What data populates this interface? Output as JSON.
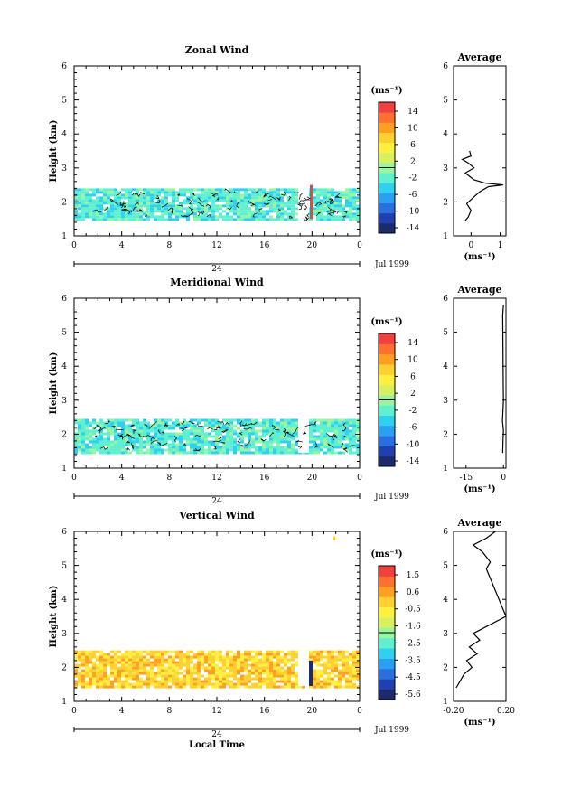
{
  "panels": [
    {
      "id": "zonal",
      "title": "Zonal Wind",
      "ylabel": "Height (km)",
      "xticks": [
        "0",
        "4",
        "8",
        "12",
        "16",
        "20",
        "0"
      ],
      "day_label": "24",
      "date_label": "Jul 1999",
      "colorbar_title": "(ms⁻¹)",
      "colorbar_ticks": [
        "14",
        "10",
        "6",
        "2",
        "-2",
        "-6",
        "-10",
        "-14"
      ],
      "avg_title": "Average",
      "avg_xticks": [
        "0",
        "1"
      ],
      "avg_xlabel": "(ms⁻¹)",
      "yticks": [
        "1",
        "2",
        "3",
        "4",
        "5",
        "6"
      ]
    },
    {
      "id": "meridional",
      "title": "Meridional Wind",
      "ylabel": "Height (km)",
      "xticks": [
        "0",
        "4",
        "8",
        "12",
        "16",
        "20",
        "0"
      ],
      "day_label": "24",
      "date_label": "Jul 1999",
      "colorbar_title": "(ms⁻¹)",
      "colorbar_ticks": [
        "14",
        "10",
        "6",
        "2",
        "-2",
        "-6",
        "-10",
        "-14"
      ],
      "avg_title": "Average",
      "avg_xticks": [
        "-15",
        "0"
      ],
      "avg_xlabel": "(ms⁻¹)",
      "yticks": [
        "1",
        "2",
        "3",
        "4",
        "5",
        "6"
      ]
    },
    {
      "id": "vertical",
      "title": "Vertical Wind",
      "ylabel": "Height (km)",
      "xticks": [
        "0",
        "4",
        "8",
        "12",
        "16",
        "20",
        "0"
      ],
      "day_label": "24",
      "date_label": "Jul 1999",
      "colorbar_title": "(ms⁻¹)",
      "colorbar_ticks": [
        "1.5",
        "0.6",
        "-0.5",
        "-1.6",
        "-2.5",
        "-3.5",
        "-4.5",
        "-5.6"
      ],
      "avg_title": "Average",
      "avg_xticks": [
        "-0.20",
        "0.20"
      ],
      "avg_xlabel": "(ms⁻¹)",
      "yticks": [
        "1",
        "2",
        "3",
        "4",
        "5",
        "6"
      ],
      "xlabel": "Local Time"
    }
  ],
  "colors": {
    "scale": [
      "#1b2b6b",
      "#2040b0",
      "#2a6ee0",
      "#2aa0f0",
      "#30d0f0",
      "#5ff0d0",
      "#9af5a0",
      "#d8f060",
      "#fff040",
      "#ffd030",
      "#ffa020",
      "#ff7030",
      "#f04040"
    ],
    "wind_fill_zonal": "#5ff0d0",
    "wind_fill_meridional": "#5ff0d0",
    "wind_fill_vertical": "#ffd030"
  },
  "chart_data": [
    {
      "type": "heatmap",
      "title": "Zonal Wind",
      "xlabel": "",
      "ylabel": "Height (km)",
      "xlim": [
        0,
        24
      ],
      "ylim": [
        1,
        6
      ],
      "data_height_range": [
        1.45,
        2.4
      ],
      "dominant_value": -3,
      "notes": "sparse contoured field, mostly weak winds near -2 to -4 ms-1; local high values near hour 20"
    },
    {
      "type": "line",
      "title": "Average",
      "panel": "Zonal Wind",
      "xlim": [
        -0.6,
        1.2
      ],
      "ylim": [
        1,
        6
      ],
      "x": [
        -0.2,
        -0.1,
        0.0,
        -0.15,
        0.1,
        0.3,
        0.6,
        1.1,
        0.5,
        0.1,
        -0.2,
        0.1,
        -0.1,
        -0.3,
        0.0,
        -0.05
      ],
      "y": [
        1.45,
        1.55,
        1.75,
        1.95,
        2.15,
        2.3,
        2.45,
        2.5,
        2.55,
        2.65,
        2.85,
        3.0,
        3.15,
        3.25,
        3.35,
        3.5
      ]
    },
    {
      "type": "heatmap",
      "title": "Meridional Wind",
      "xlabel": "",
      "ylabel": "Height (km)",
      "xlim": [
        0,
        24
      ],
      "ylim": [
        1,
        6
      ],
      "data_height_range": [
        1.45,
        2.45
      ],
      "dominant_value": -3
    },
    {
      "type": "line",
      "title": "Average",
      "panel": "Meridional Wind",
      "xlim": [
        -20,
        1
      ],
      "ylim": [
        1,
        6
      ],
      "x": [
        -0.3,
        -0.2,
        0.0,
        -0.4,
        -0.2,
        0.0,
        -0.1,
        -0.3,
        0.0
      ],
      "y": [
        1.45,
        1.8,
        2.1,
        2.4,
        2.7,
        3.0,
        3.4,
        5.5,
        5.8
      ]
    },
    {
      "type": "heatmap",
      "title": "Vertical Wind",
      "xlabel": "Local Time",
      "ylabel": "Height (km)",
      "xlim": [
        0,
        24
      ],
      "ylim": [
        1,
        6
      ],
      "data_height_range": [
        1.45,
        2.5
      ],
      "dominant_value": -0.5,
      "notes": "strong downward values near hour 20 between 1.5 and 2.2 km"
    },
    {
      "type": "line",
      "title": "Average",
      "panel": "Vertical Wind",
      "xlim": [
        -0.2,
        0.2
      ],
      "ylim": [
        1,
        6
      ],
      "x": [
        -0.18,
        -0.15,
        -0.12,
        -0.06,
        -0.1,
        -0.02,
        -0.08,
        0.0,
        -0.05,
        0.05,
        0.2,
        0.05,
        0.08,
        0.02,
        -0.05,
        0.05,
        0.12
      ],
      "y": [
        1.4,
        1.6,
        1.8,
        2.0,
        2.2,
        2.4,
        2.6,
        2.8,
        3.0,
        3.2,
        3.5,
        4.9,
        5.1,
        5.4,
        5.6,
        5.8,
        6.0
      ]
    }
  ]
}
